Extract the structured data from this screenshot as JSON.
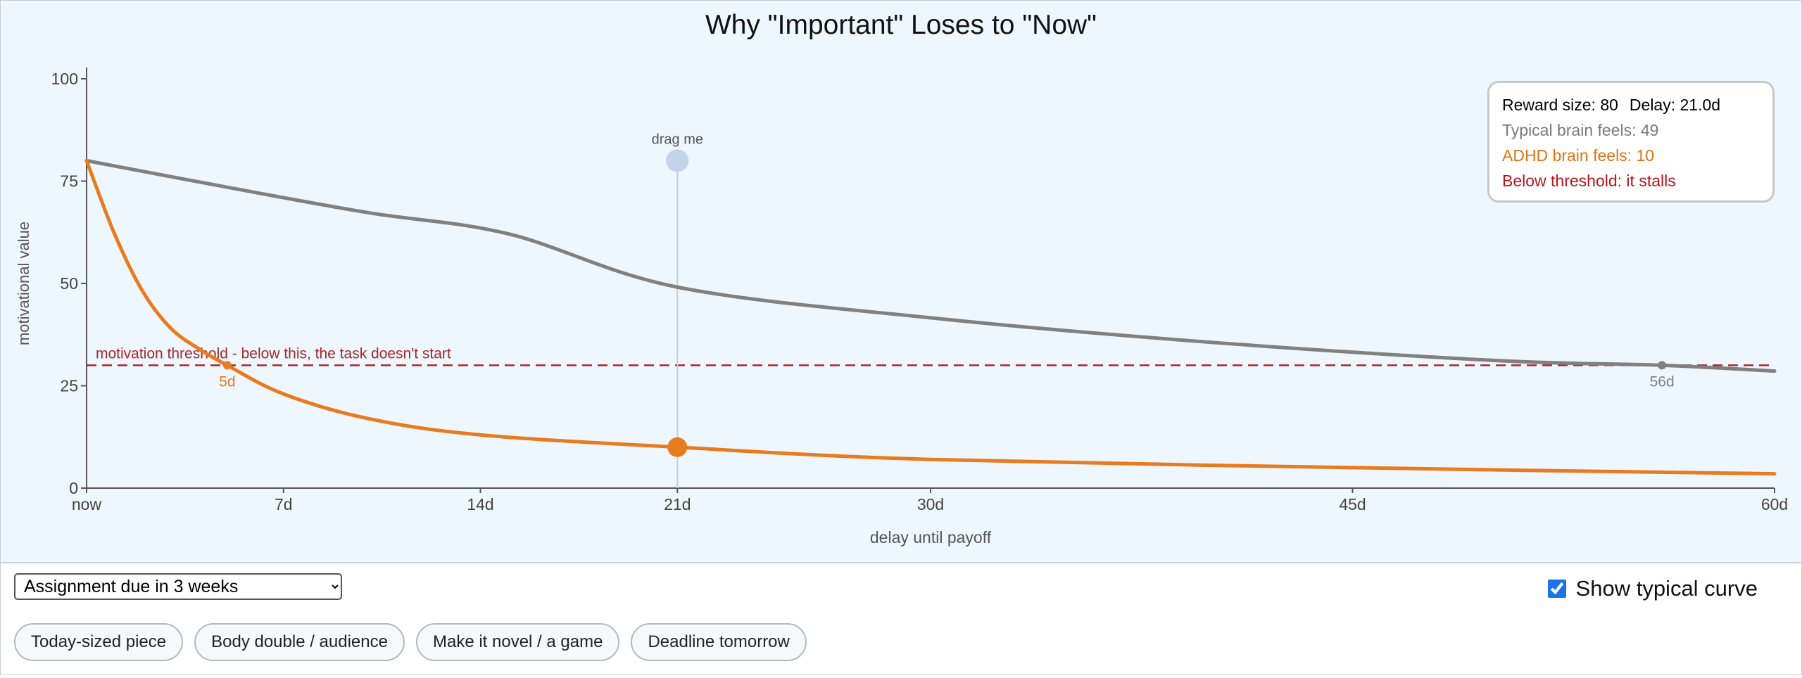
{
  "chart_data": {
    "type": "line",
    "title": "Why \"Important\" Loses to \"Now\"",
    "xlabel": "delay until payoff",
    "ylabel": "motivational value",
    "xlim": [
      0,
      60
    ],
    "ylim": [
      0,
      100
    ],
    "x_ticks": [
      {
        "value": 0,
        "label": "now"
      },
      {
        "value": 7,
        "label": "7d"
      },
      {
        "value": 14,
        "label": "14d"
      },
      {
        "value": 21,
        "label": "21d"
      },
      {
        "value": 30,
        "label": "30d"
      },
      {
        "value": 45,
        "label": "45d"
      },
      {
        "value": 60,
        "label": "60d"
      }
    ],
    "y_ticks": [
      0,
      25,
      50,
      75,
      100
    ],
    "reward_size": 80,
    "threshold": {
      "value": 30,
      "label": "motivation threshold - below this, the task doesn't start",
      "color": "#a52a2a"
    },
    "series": [
      {
        "key": "typical",
        "color": "#808080",
        "points": [
          [
            0,
            80
          ],
          [
            5,
            73.5
          ],
          [
            10,
            67.3
          ],
          [
            15,
            62.1
          ],
          [
            21,
            49.1
          ],
          [
            30,
            41.6
          ],
          [
            40,
            35.6
          ],
          [
            50,
            31.2
          ],
          [
            56,
            30
          ],
          [
            60,
            28.6
          ]
        ]
      },
      {
        "key": "adhd",
        "color": "#e87b1e",
        "points": [
          [
            0,
            80
          ],
          [
            1,
            62
          ],
          [
            2,
            48
          ],
          [
            3,
            39
          ],
          [
            4,
            34
          ],
          [
            5,
            30
          ],
          [
            7,
            23
          ],
          [
            10,
            17
          ],
          [
            14,
            13
          ],
          [
            21,
            10
          ],
          [
            30,
            7
          ],
          [
            45,
            5
          ],
          [
            60,
            3.5
          ]
        ]
      }
    ],
    "crossings": [
      {
        "series": "adhd",
        "x": 5,
        "y": 30,
        "label": "5d",
        "color": "#e87b1e"
      },
      {
        "series": "typical",
        "x": 56,
        "y": 30,
        "label": "56d",
        "color": "#808080"
      }
    ],
    "handle": {
      "x": 21,
      "y": 80,
      "label": "drag me",
      "adhd_y": 10
    }
  },
  "info": {
    "reward_label": "Reward size: 80",
    "delay_label": "Delay: 21.0d",
    "typical_label": "Typical brain feels: 49",
    "adhd_label": "ADHD brain feels: 10",
    "status": "Below threshold: it stalls"
  },
  "controls": {
    "scenario": "Assignment due in 3 weeks",
    "show_typical": "Show typical curve",
    "buttons": [
      "Today-sized piece",
      "Body double / audience",
      "Make it novel / a game",
      "Deadline tomorrow"
    ]
  }
}
